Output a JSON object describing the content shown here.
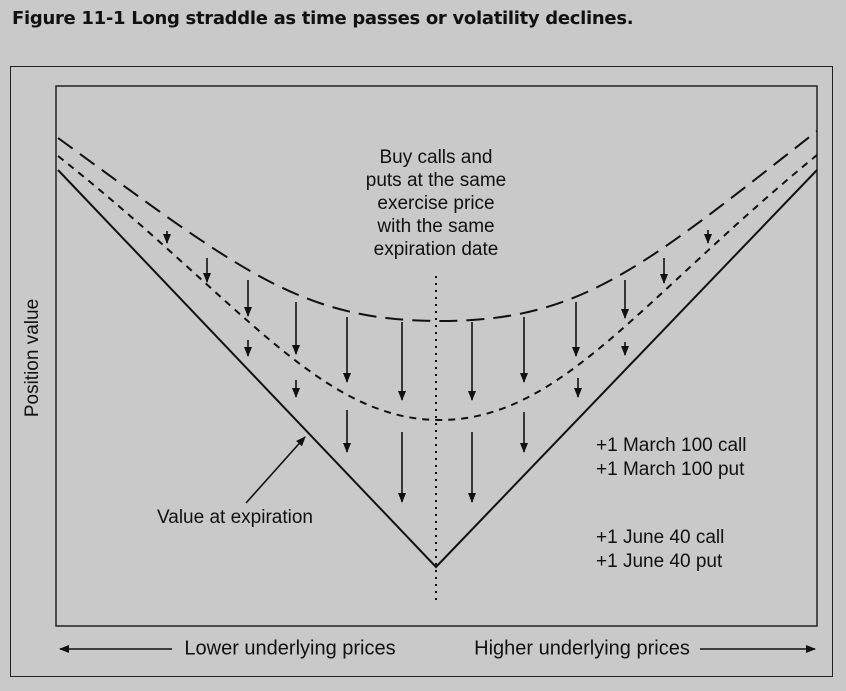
{
  "figure": {
    "title": "Figure 11-1  Long straddle as time passes or volatility declines."
  },
  "annotations": {
    "center_note": [
      "Buy calls and",
      "puts at the same",
      "exercise price",
      "with the same",
      "expiration date"
    ],
    "value_at_expiration": "Value at expiration",
    "position_group_1": [
      "+1 March 100 call",
      "+1 March 100 put"
    ],
    "position_group_2": [
      "+1 June 40 call",
      "+1 June 40 put"
    ]
  },
  "axes": {
    "y_label": "Position value",
    "x_left_label": "Lower underlying prices",
    "x_right_label": "Higher underlying prices"
  },
  "colors": {
    "background": "#c9c9c9",
    "ink": "#111111"
  }
}
